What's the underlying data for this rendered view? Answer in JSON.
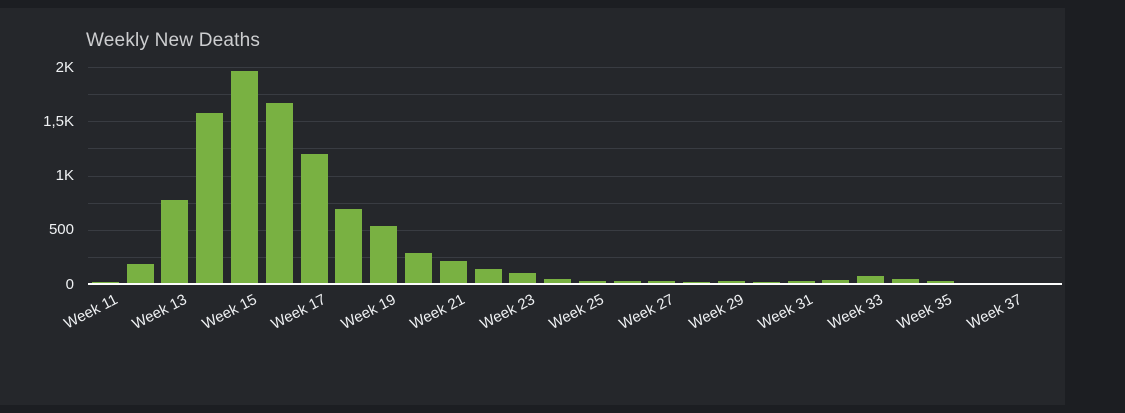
{
  "page": {
    "background": "#1c1e22",
    "card_background": "#25272b"
  },
  "chart_data": {
    "type": "bar",
    "title": "Weekly New Deaths",
    "categories": [
      "Week 11",
      "Week 12",
      "Week 13",
      "Week 14",
      "Week 15",
      "Week 16",
      "Week 17",
      "Week 18",
      "Week 19",
      "Week 20",
      "Week 21",
      "Week 22",
      "Week 23",
      "Week 24",
      "Week 25",
      "Week 26",
      "Week 27",
      "Week 28",
      "Week 29",
      "Week 30",
      "Week 31",
      "Week 32",
      "Week 33",
      "Week 34",
      "Week 35",
      "Week 36",
      "Week 37",
      "Week 38"
    ],
    "values": [
      15,
      185,
      775,
      1580,
      1965,
      1665,
      1200,
      690,
      535,
      290,
      210,
      140,
      100,
      42,
      32,
      30,
      28,
      22,
      24,
      18,
      28,
      38,
      75,
      44,
      26,
      13,
      13,
      5
    ],
    "xlabel": "",
    "ylabel": "",
    "ylim": [
      0,
      2000
    ],
    "y_ticks": [
      {
        "value": 0,
        "label": "0"
      },
      {
        "value": 500,
        "label": "500"
      },
      {
        "value": 1000,
        "label": "1K"
      },
      {
        "value": 1500,
        "label": "1,5K"
      },
      {
        "value": 2000,
        "label": "2K"
      }
    ],
    "gridline_step": 250,
    "x_label_every": 2,
    "x_label_rotation_deg": -27,
    "grid": "horizontal",
    "legend": "none",
    "colors": {
      "bar": "#79b142",
      "gridline": "#393c42",
      "axis_line": "#fdfdfd",
      "title_text": "#cdced0",
      "tick_text": "#eff1f3"
    }
  }
}
